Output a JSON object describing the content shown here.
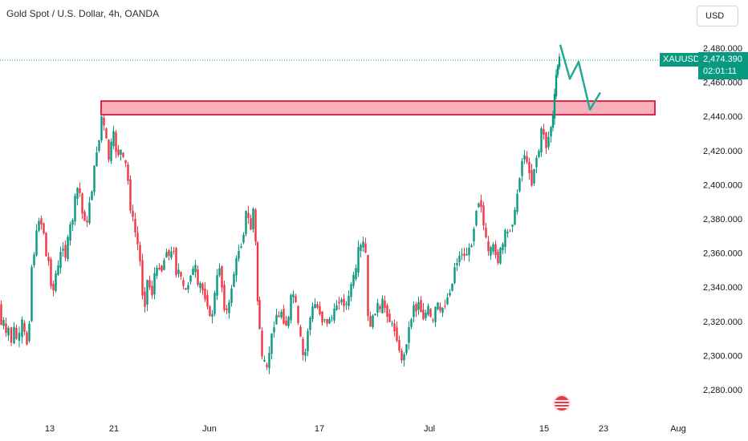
{
  "header": {
    "title": "Gold Spot / U.S. Dollar, 4h, OANDA"
  },
  "toolbar": {
    "currency_label": "USD"
  },
  "price_tag": {
    "symbol": "XAUUSD",
    "price": "2,474.390",
    "countdown": "02:01:11",
    "color": "#089981"
  },
  "colors": {
    "up": "#089981",
    "down": "#f23645",
    "zone_fill": "#f5a3b2",
    "zone_border": "#e0244c",
    "projection": "#22ab94"
  },
  "icons": {
    "calendar_event": "us-flag-icon"
  },
  "chart_data": {
    "type": "candlestick",
    "title": "Gold Spot / U.S. Dollar, 4h, OANDA",
    "currency": "USD",
    "ylim": [
      2270,
      2490
    ],
    "yticks": [
      "2,280.000",
      "2,300.000",
      "2,320.000",
      "2,340.000",
      "2,360.000",
      "2,380.000",
      "2,400.000",
      "2,420.000",
      "2,440.000",
      "2,460.000",
      "2,480.000"
    ],
    "ytick_values": [
      2280,
      2300,
      2320,
      2340,
      2360,
      2380,
      2400,
      2420,
      2440,
      2460,
      2480
    ],
    "xticks": [
      "13",
      "21",
      "Jun",
      "17",
      "Jul",
      "15",
      "23",
      "Aug"
    ],
    "current_price": 2474.39,
    "resistance_zone": {
      "low": 2441,
      "high": 2449
    },
    "close_path": [
      [
        0,
        2330
      ],
      [
        3,
        2318
      ],
      [
        6,
        2320
      ],
      [
        9,
        2312
      ],
      [
        12,
        2316
      ],
      [
        16,
        2308
      ],
      [
        19,
        2316
      ],
      [
        22,
        2310
      ],
      [
        26,
        2312
      ],
      [
        29,
        2320
      ],
      [
        32,
        2313
      ],
      [
        35,
        2307
      ],
      [
        38,
        2320
      ],
      [
        41,
        2352
      ],
      [
        44,
        2360
      ],
      [
        47,
        2372
      ],
      [
        50,
        2380
      ],
      [
        53,
        2377
      ],
      [
        56,
        2372
      ],
      [
        59,
        2358
      ],
      [
        62,
        2355
      ],
      [
        65,
        2342
      ],
      [
        68,
        2338
      ],
      [
        71,
        2348
      ],
      [
        74,
        2352
      ],
      [
        77,
        2360
      ],
      [
        80,
        2364
      ],
      [
        83,
        2358
      ],
      [
        86,
        2368
      ],
      [
        89,
        2376
      ],
      [
        92,
        2380
      ],
      [
        95,
        2392
      ],
      [
        98,
        2398
      ],
      [
        101,
        2395
      ],
      [
        104,
        2383
      ],
      [
        107,
        2380
      ],
      [
        110,
        2377
      ],
      [
        113,
        2390
      ],
      [
        116,
        2397
      ],
      [
        119,
        2410
      ],
      [
        122,
        2420
      ],
      [
        125,
        2426
      ],
      [
        128,
        2440
      ],
      [
        131,
        2434
      ],
      [
        134,
        2426
      ],
      [
        137,
        2415
      ],
      [
        140,
        2424
      ],
      [
        143,
        2430
      ],
      [
        146,
        2420
      ],
      [
        149,
        2418
      ],
      [
        152,
        2420
      ],
      [
        155,
        2415
      ],
      [
        158,
        2412
      ],
      [
        161,
        2402
      ],
      [
        164,
        2386
      ],
      [
        167,
        2380
      ],
      [
        170,
        2372
      ],
      [
        173,
        2365
      ],
      [
        176,
        2355
      ],
      [
        179,
        2336
      ],
      [
        182,
        2330
      ],
      [
        185,
        2344
      ],
      [
        188,
        2340
      ],
      [
        191,
        2336
      ],
      [
        194,
        2348
      ],
      [
        197,
        2350
      ],
      [
        200,
        2352
      ],
      [
        203,
        2350
      ],
      [
        206,
        2356
      ],
      [
        209,
        2362
      ],
      [
        212,
        2358
      ],
      [
        215,
        2360
      ],
      [
        218,
        2362
      ],
      [
        221,
        2348
      ],
      [
        224,
        2350
      ],
      [
        227,
        2345
      ],
      [
        230,
        2340
      ],
      [
        233,
        2338
      ],
      [
        236,
        2342
      ],
      [
        239,
        2348
      ],
      [
        242,
        2350
      ],
      [
        245,
        2352
      ],
      [
        248,
        2340
      ],
      [
        251,
        2342
      ],
      [
        254,
        2338
      ],
      [
        257,
        2334
      ],
      [
        260,
        2330
      ],
      [
        263,
        2322
      ],
      [
        266,
        2325
      ],
      [
        269,
        2336
      ],
      [
        272,
        2346
      ],
      [
        275,
        2352
      ],
      [
        278,
        2340
      ],
      [
        281,
        2328
      ],
      [
        284,
        2326
      ],
      [
        287,
        2330
      ],
      [
        290,
        2340
      ],
      [
        293,
        2348
      ],
      [
        296,
        2356
      ],
      [
        299,
        2362
      ],
      [
        302,
        2365
      ],
      [
        305,
        2372
      ],
      [
        308,
        2384
      ],
      [
        311,
        2380
      ],
      [
        314,
        2374
      ],
      [
        317,
        2386
      ],
      [
        320,
        2366
      ],
      [
        322,
        2332
      ],
      [
        325,
        2316
      ],
      [
        328,
        2298
      ],
      [
        331,
        2296
      ],
      [
        334,
        2292
      ],
      [
        337,
        2302
      ],
      [
        340,
        2312
      ],
      [
        343,
        2318
      ],
      [
        346,
        2324
      ],
      [
        349,
        2322
      ],
      [
        352,
        2326
      ],
      [
        355,
        2320
      ],
      [
        358,
        2318
      ],
      [
        361,
        2322
      ],
      [
        364,
        2334
      ],
      [
        367,
        2336
      ],
      [
        370,
        2330
      ],
      [
        373,
        2318
      ],
      [
        376,
        2310
      ],
      [
        379,
        2300
      ],
      [
        382,
        2302
      ],
      [
        385,
        2315
      ],
      [
        388,
        2322
      ],
      [
        391,
        2328
      ],
      [
        394,
        2330
      ],
      [
        397,
        2328
      ],
      [
        400,
        2325
      ],
      [
        403,
        2320
      ],
      [
        406,
        2322
      ],
      [
        409,
        2318
      ],
      [
        412,
        2322
      ],
      [
        415,
        2322
      ],
      [
        418,
        2326
      ],
      [
        421,
        2330
      ],
      [
        424,
        2332
      ],
      [
        427,
        2332
      ],
      [
        430,
        2330
      ],
      [
        433,
        2330
      ],
      [
        436,
        2334
      ],
      [
        439,
        2342
      ],
      [
        442,
        2346
      ],
      [
        445,
        2350
      ],
      [
        448,
        2362
      ],
      [
        451,
        2364
      ],
      [
        454,
        2366
      ],
      [
        457,
        2360
      ],
      [
        460,
        2322
      ],
      [
        463,
        2318
      ],
      [
        466,
        2322
      ],
      [
        469,
        2326
      ],
      [
        472,
        2330
      ],
      [
        475,
        2326
      ],
      [
        478,
        2332
      ],
      [
        481,
        2328
      ],
      [
        484,
        2324
      ],
      [
        487,
        2320
      ],
      [
        490,
        2318
      ],
      [
        493,
        2315
      ],
      [
        496,
        2310
      ],
      [
        499,
        2302
      ],
      [
        502,
        2298
      ],
      [
        505,
        2300
      ],
      [
        508,
        2308
      ],
      [
        511,
        2316
      ],
      [
        514,
        2322
      ],
      [
        517,
        2330
      ],
      [
        520,
        2326
      ],
      [
        523,
        2332
      ],
      [
        526,
        2326
      ],
      [
        529,
        2322
      ],
      [
        532,
        2325
      ],
      [
        535,
        2328
      ],
      [
        538,
        2322
      ],
      [
        541,
        2320
      ],
      [
        544,
        2328
      ],
      [
        547,
        2330
      ],
      [
        550,
        2325
      ],
      [
        553,
        2328
      ],
      [
        556,
        2330
      ],
      [
        559,
        2334
      ],
      [
        562,
        2338
      ],
      [
        565,
        2342
      ],
      [
        568,
        2352
      ],
      [
        571,
        2355
      ],
      [
        574,
        2358
      ],
      [
        577,
        2360
      ],
      [
        580,
        2358
      ],
      [
        583,
        2360
      ],
      [
        586,
        2362
      ],
      [
        589,
        2366
      ],
      [
        592,
        2375
      ],
      [
        595,
        2386
      ],
      [
        598,
        2390
      ],
      [
        601,
        2388
      ],
      [
        604,
        2376
      ],
      [
        607,
        2368
      ],
      [
        610,
        2360
      ],
      [
        613,
        2362
      ],
      [
        616,
        2364
      ],
      [
        619,
        2360
      ],
      [
        622,
        2355
      ],
      [
        625,
        2362
      ],
      [
        628,
        2365
      ],
      [
        631,
        2372
      ],
      [
        634,
        2372
      ],
      [
        637,
        2374
      ],
      [
        640,
        2378
      ],
      [
        643,
        2384
      ],
      [
        646,
        2395
      ],
      [
        649,
        2405
      ],
      [
        652,
        2414
      ],
      [
        655,
        2418
      ],
      [
        658,
        2412
      ],
      [
        661,
        2408
      ],
      [
        664,
        2400
      ],
      [
        667,
        2410
      ],
      [
        670,
        2416
      ],
      [
        673,
        2420
      ],
      [
        676,
        2432
      ],
      [
        679,
        2430
      ],
      [
        682,
        2422
      ],
      [
        685,
        2428
      ],
      [
        688,
        2434
      ],
      [
        690,
        2440
      ],
      [
        692,
        2452
      ],
      [
        694,
        2464
      ],
      [
        696,
        2470
      ],
      [
        698,
        2474
      ]
    ],
    "projection": [
      [
        698,
        2482
      ],
      [
        710,
        2462
      ],
      [
        721,
        2472
      ],
      [
        735,
        2444
      ],
      [
        748,
        2454
      ]
    ]
  }
}
